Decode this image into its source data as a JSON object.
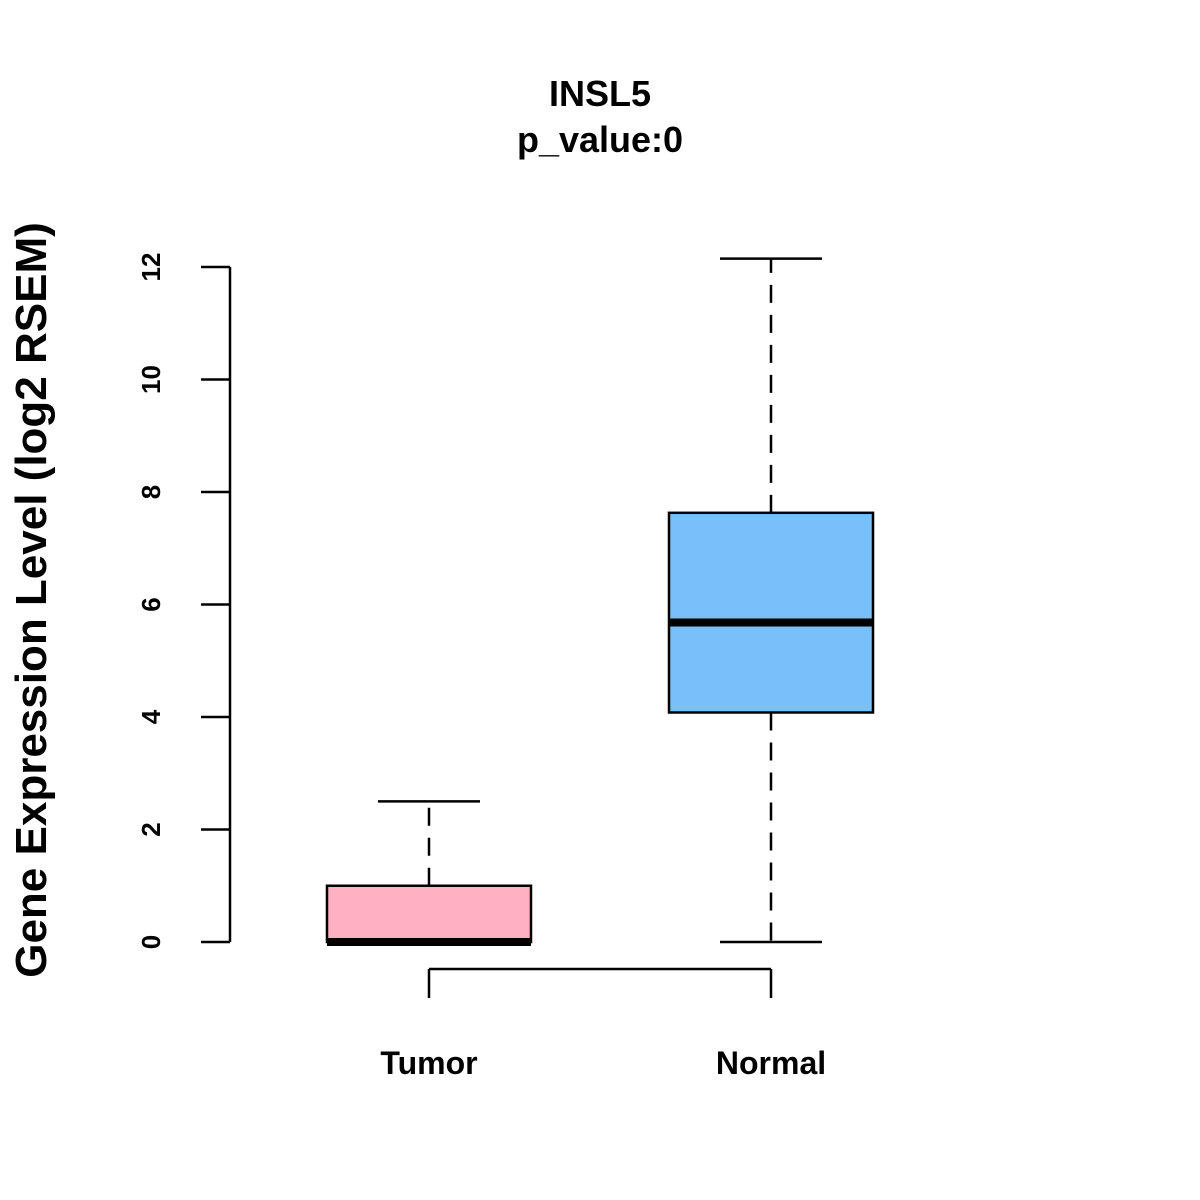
{
  "chart_data": {
    "type": "box",
    "title": "INSL5",
    "subtitle": "p_value:0",
    "xlabel": "",
    "ylabel": "Gene Expression Level (log2 RSEM)",
    "ylim": [
      0,
      12
    ],
    "yticks": [
      0,
      2,
      4,
      6,
      8,
      10,
      12
    ],
    "categories": [
      "Tumor",
      "Normal"
    ],
    "series": [
      {
        "name": "Tumor",
        "color": "#FFB0C1",
        "whisker_low": 0,
        "q1": 0,
        "median": 0,
        "q3": 1.0,
        "whisker_high": 2.5
      },
      {
        "name": "Normal",
        "color": "#77C0F8",
        "whisker_low": 0,
        "q1": 4.08,
        "median": 5.68,
        "q3": 7.63,
        "whisker_high": 12.15
      }
    ],
    "comparison_bracket": [
      "Tumor",
      "Normal"
    ]
  }
}
